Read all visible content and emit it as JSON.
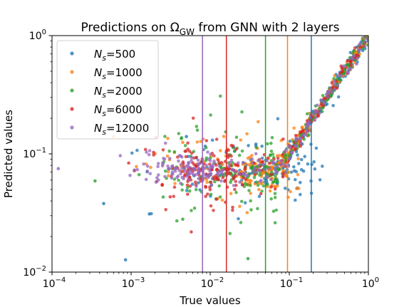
{
  "chart_data": {
    "type": "scatter",
    "title": "Predictions on Ω_GW from GNN with 2 layers",
    "title_parts": {
      "prefix": "Predictions on Ω",
      "sub": "GW",
      "suffix": " from GNN with 2 layers"
    },
    "xlabel": "True values",
    "ylabel": "Predicted values",
    "xscale": "log",
    "yscale": "log",
    "xlim": [
      0.0001,
      1
    ],
    "ylim": [
      0.01,
      1
    ],
    "x_ticks": [
      {
        "value": 0.0001,
        "base": "10",
        "exp": "−4"
      },
      {
        "value": 0.001,
        "base": "10",
        "exp": "−3"
      },
      {
        "value": 0.01,
        "base": "10",
        "exp": "−2"
      },
      {
        "value": 0.1,
        "base": "10",
        "exp": "−1"
      },
      {
        "value": 1,
        "base": "10",
        "exp": "0"
      }
    ],
    "y_ticks": [
      {
        "value": 0.01,
        "base": "10",
        "exp": "−2"
      },
      {
        "value": 0.1,
        "base": "10",
        "exp": "−1"
      },
      {
        "value": 1,
        "base": "10",
        "exp": "0"
      }
    ],
    "grid": false,
    "legend_position": "top-left",
    "series": [
      {
        "name": "N_s=500",
        "label_main": "N",
        "label_sub": "s",
        "label_value": "=500",
        "color": "#1f77b4",
        "threshold_x": 0.19
      },
      {
        "name": "N_s=1000",
        "label_main": "N",
        "label_sub": "s",
        "label_value": "=1000",
        "color": "#ff7f0e",
        "threshold_x": 0.095
      },
      {
        "name": "N_s=2000",
        "label_main": "N",
        "label_sub": "s",
        "label_value": "=2000",
        "color": "#2ca02c",
        "threshold_x": 0.05
      },
      {
        "name": "N_s=6000",
        "label_main": "N",
        "label_sub": "s",
        "label_value": "=6000",
        "color": "#d62728",
        "threshold_x": 0.016
      },
      {
        "name": "N_s=12000",
        "label_main": "N",
        "label_sub": "s",
        "label_value": "=12000",
        "color": "#9467bd",
        "threshold_x": 0.008
      }
    ],
    "sample_points": [
      {
        "series": 0,
        "x": 0.00045,
        "y": 0.038
      },
      {
        "series": 0,
        "x": 0.00085,
        "y": 0.0127
      },
      {
        "series": 0,
        "x": 0.0017,
        "y": 0.031
      },
      {
        "series": 0,
        "x": 0.005,
        "y": 0.14
      },
      {
        "series": 1,
        "x": 0.0006,
        "y": 0.14
      },
      {
        "series": 1,
        "x": 0.0045,
        "y": 0.125
      },
      {
        "series": 2,
        "x": 0.00035,
        "y": 0.059
      },
      {
        "series": 2,
        "x": 0.0045,
        "y": 0.028
      },
      {
        "series": 2,
        "x": 0.03,
        "y": 0.013
      },
      {
        "series": 3,
        "x": 0.0011,
        "y": 0.072
      },
      {
        "series": 4,
        "x": 0.00012,
        "y": 0.075
      },
      {
        "series": 4,
        "x": 0.0011,
        "y": 0.073
      }
    ]
  }
}
